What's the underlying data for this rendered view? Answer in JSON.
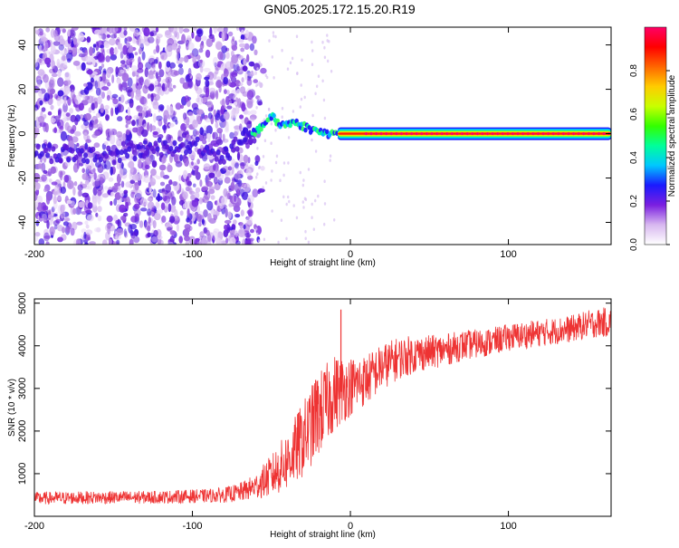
{
  "chart_data": [
    {
      "type": "heatmap",
      "title": "GN05.2025.172.15.20.R19",
      "xlabel": "Height of straight line (km)",
      "ylabel": "Frequency (Hz)",
      "xlim": [
        -200,
        165
      ],
      "ylim": [
        -50,
        48
      ],
      "xticks": [
        -200,
        -100,
        0,
        100
      ],
      "yticks": [
        -40,
        -20,
        0,
        20,
        40
      ],
      "colorbar": {
        "label": "Normalized spectral amplitude",
        "range": [
          0,
          1
        ],
        "ticks": [
          0.0,
          0.2,
          0.4,
          0.6,
          0.8
        ],
        "colormap": [
          "#ffffff",
          "#d8b8f0",
          "#7a1fe0",
          "#1a1aff",
          "#00c8ff",
          "#00ff9a",
          "#33ff00",
          "#c8ff00",
          "#ffcc00",
          "#ff6600",
          "#ff0000",
          "#ff0066"
        ]
      },
      "ridge": [
        {
          "x": -200,
          "y": -8
        },
        {
          "x": -160,
          "y": -10
        },
        {
          "x": -140,
          "y": -8
        },
        {
          "x": -120,
          "y": -6
        },
        {
          "x": -100,
          "y": -4
        },
        {
          "x": -85,
          "y": -12
        },
        {
          "x": -70,
          "y": -5
        },
        {
          "x": -55,
          "y": 4
        },
        {
          "x": -50,
          "y": 8
        },
        {
          "x": -45,
          "y": 4
        },
        {
          "x": -35,
          "y": 5
        },
        {
          "x": -25,
          "y": 2
        },
        {
          "x": -15,
          "y": 0
        },
        {
          "x": -5,
          "y": 0
        },
        {
          "x": 0,
          "y": -2
        },
        {
          "x": 5,
          "y": 0
        },
        {
          "x": 60,
          "y": 0
        },
        {
          "x": 165,
          "y": 0
        }
      ]
    },
    {
      "type": "line",
      "xlabel": "Height of straight line (km)",
      "ylabel": "SNR (10 * v/v)",
      "xlim": [
        -200,
        165
      ],
      "ylim": [
        0,
        5100
      ],
      "xticks": [
        -200,
        -100,
        0,
        100
      ],
      "yticks": [
        1000,
        2000,
        3000,
        4000,
        5000
      ],
      "color": "#ee3333",
      "series": [
        {
          "x": [
            -200,
            -180,
            -160,
            -140,
            -120,
            -100,
            -90,
            -80,
            -70,
            -60,
            -50,
            -40,
            -30,
            -20,
            -10,
            0,
            10,
            20,
            30,
            40,
            50,
            60,
            70,
            80,
            90,
            100,
            110,
            120,
            130,
            140,
            150,
            160,
            165
          ],
          "values": [
            420,
            430,
            440,
            440,
            450,
            470,
            480,
            500,
            560,
            700,
            950,
            1300,
            1800,
            2400,
            2900,
            3050,
            3200,
            3500,
            3700,
            3800,
            3850,
            3900,
            4000,
            4050,
            4100,
            4200,
            4250,
            4300,
            4350,
            4400,
            4500,
            4550,
            4550
          ],
          "noise": [
            150,
            150,
            150,
            150,
            150,
            160,
            160,
            180,
            220,
            300,
            500,
            700,
            900,
            1000,
            900,
            700,
            600,
            550,
            500,
            450,
            400,
            380,
            360,
            340,
            330,
            320,
            320,
            320,
            320,
            320,
            330,
            350,
            350
          ]
        }
      ],
      "spikes": [
        {
          "x": -6,
          "y": 4850
        },
        {
          "x": -22,
          "y": 3200
        }
      ]
    }
  ]
}
